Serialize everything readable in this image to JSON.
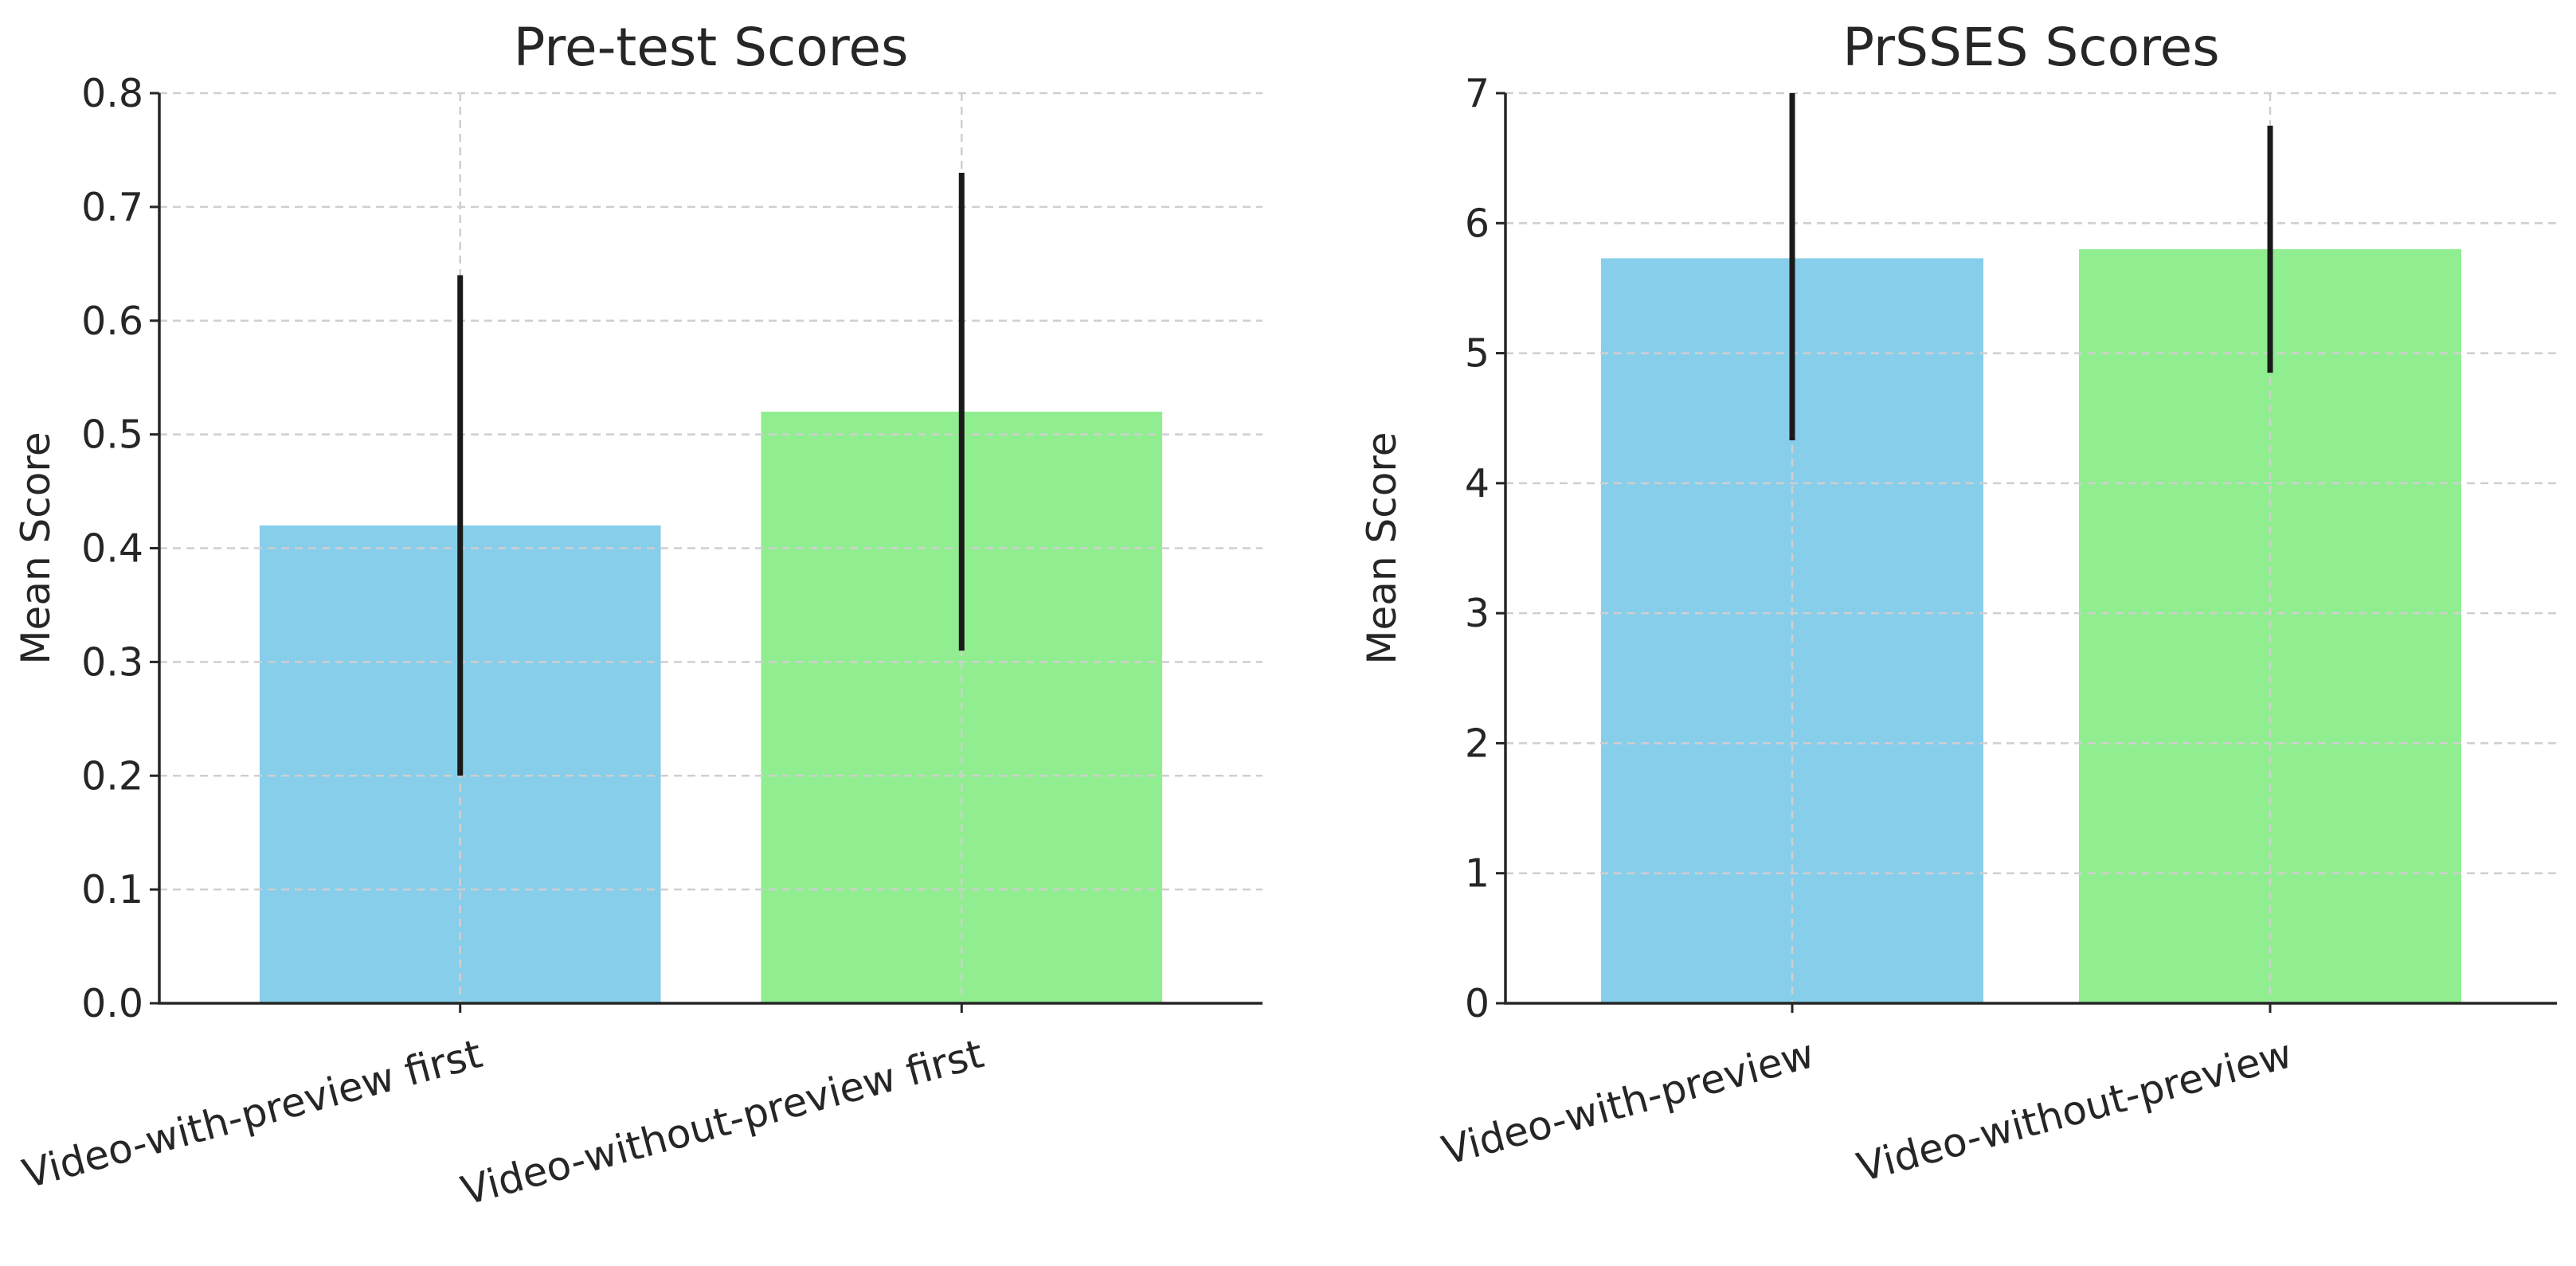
{
  "chart_data": [
    {
      "type": "bar",
      "title": "Pre-test Scores",
      "xlabel": "",
      "ylabel": "Mean Score",
      "categories": [
        "Video-with-preview first",
        "Video-without-preview first"
      ],
      "values": [
        0.42,
        0.52
      ],
      "errors": [
        0.22,
        0.21
      ],
      "colors": [
        "#87ceeb",
        "#90ee90"
      ],
      "ylim": [
        0,
        0.8
      ],
      "yticks": [
        0.0,
        0.1,
        0.2,
        0.3,
        0.4,
        0.5,
        0.6,
        0.7,
        0.8
      ],
      "ytick_labels": [
        "0.0",
        "0.1",
        "0.2",
        "0.3",
        "0.4",
        "0.5",
        "0.6",
        "0.7",
        "0.8"
      ],
      "grid": true
    },
    {
      "type": "bar",
      "title": "PrSSES Scores",
      "xlabel": "",
      "ylabel": "Mean Score",
      "categories": [
        "Video-with-preview",
        "Video-without-preview"
      ],
      "values": [
        5.73,
        5.8
      ],
      "errors": [
        1.4,
        0.95
      ],
      "colors": [
        "#87ceeb",
        "#90ee90"
      ],
      "ylim": [
        0,
        7
      ],
      "yticks": [
        0,
        1,
        2,
        3,
        4,
        5,
        6,
        7
      ],
      "ytick_labels": [
        "0",
        "1",
        "2",
        "3",
        "4",
        "5",
        "6",
        "7"
      ],
      "grid": true
    }
  ]
}
